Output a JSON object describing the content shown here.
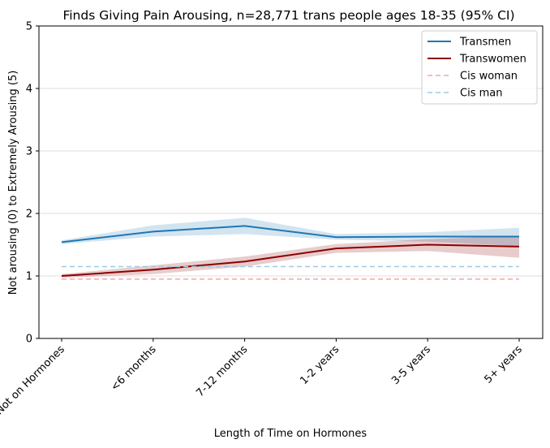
{
  "chart_data": {
    "type": "line",
    "title": "Finds Giving Pain Arousing, n=28,771 trans people ages 18-35 (95% CI)",
    "xlabel": "Length of Time on Hormones",
    "ylabel": "Not arousing (0) to Extremely Arousing (5)",
    "categories": [
      "Not on Hormones",
      "<6 months",
      "7-12 months",
      "1-2 years",
      "3-5 years",
      "5+ years"
    ],
    "ylim": [
      0,
      5
    ],
    "yticks": [
      "0",
      "1",
      "2",
      "3",
      "4",
      "5"
    ],
    "grid": "horizontal",
    "legend_position": "top-right",
    "series": [
      {
        "name": "Transmen",
        "color": "#1f77b4",
        "style": "solid",
        "values": [
          1.54,
          1.71,
          1.8,
          1.62,
          1.63,
          1.63
        ],
        "ci_lower": [
          1.51,
          1.63,
          1.67,
          1.58,
          1.55,
          1.48
        ],
        "ci_upper": [
          1.57,
          1.81,
          1.93,
          1.67,
          1.7,
          1.77
        ]
      },
      {
        "name": "Transwomen",
        "color": "#8b0000",
        "style": "solid",
        "values": [
          1.0,
          1.1,
          1.23,
          1.44,
          1.5,
          1.47
        ],
        "ci_lower": [
          0.97,
          1.03,
          1.15,
          1.37,
          1.4,
          1.29
        ],
        "ci_upper": [
          1.03,
          1.17,
          1.31,
          1.51,
          1.59,
          1.64
        ]
      },
      {
        "name": "Cis woman",
        "color": "#f4a6a6",
        "style": "dashed",
        "values": [
          0.95,
          0.95,
          0.95,
          0.95,
          0.95,
          0.95
        ]
      },
      {
        "name": "Cis man",
        "color": "#9ecae1",
        "style": "dashed",
        "values": [
          1.15,
          1.15,
          1.15,
          1.15,
          1.15,
          1.15
        ]
      }
    ]
  }
}
